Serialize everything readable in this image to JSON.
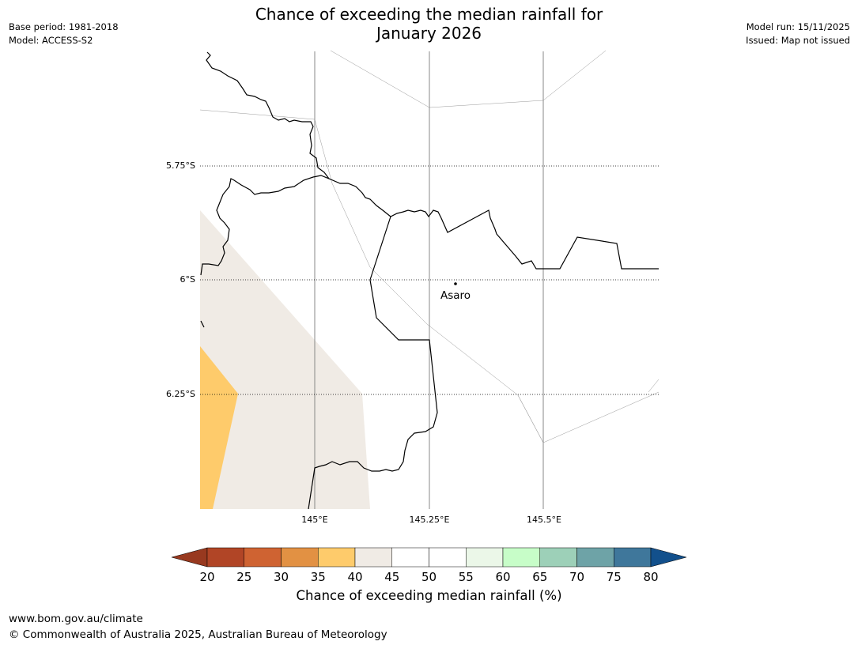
{
  "title": {
    "line1": "Chance of exceeding the median rainfall for",
    "line2": "January 2026"
  },
  "meta_left": {
    "base_period": "Base period: 1981-2018",
    "model": "Model: ACCESS-S2"
  },
  "meta_right": {
    "model_run": "Model run: 15/11/2025",
    "issued": "Issued: Map not issued"
  },
  "map": {
    "lat_labels": [
      "5.75°S",
      "6°S",
      "6.25°S"
    ],
    "lon_labels": [
      "145°E",
      "145.25°E",
      "145.5°E"
    ],
    "place": {
      "name": "Asaro"
    },
    "colors": {
      "band_40_45": "#f0ebe5",
      "band_35_40": "#fecb6b",
      "coast": "#000000",
      "graticule": "#888888"
    }
  },
  "colorbar": {
    "label": "Chance of exceeding median rainfall (%)",
    "ticks": [
      "20",
      "25",
      "30",
      "35",
      "40",
      "45",
      "50",
      "55",
      "60",
      "65",
      "70",
      "75",
      "80"
    ],
    "under_color": "#98391f",
    "over_color": "#12508c",
    "bins": [
      {
        "range": "20-25",
        "color": "#b14526"
      },
      {
        "range": "25-30",
        "color": "#cf6332"
      },
      {
        "range": "30-35",
        "color": "#e29143"
      },
      {
        "range": "35-40",
        "color": "#fecb6b"
      },
      {
        "range": "40-45",
        "color": "#f0ebe5"
      },
      {
        "range": "45-50",
        "color": "#ffffff"
      },
      {
        "range": "50-55",
        "color": "#ffffff"
      },
      {
        "range": "55-60",
        "color": "#ebf7e8"
      },
      {
        "range": "60-65",
        "color": "#c7fdc8"
      },
      {
        "range": "65-70",
        "color": "#9dd0b8"
      },
      {
        "range": "70-75",
        "color": "#6ea3a7"
      },
      {
        "range": "75-80",
        "color": "#3f779b"
      }
    ]
  },
  "footer": {
    "url": "www.bom.gov.au/climate",
    "copyright": "© Commonwealth of Australia 2025, Australian Bureau of Meteorology"
  }
}
